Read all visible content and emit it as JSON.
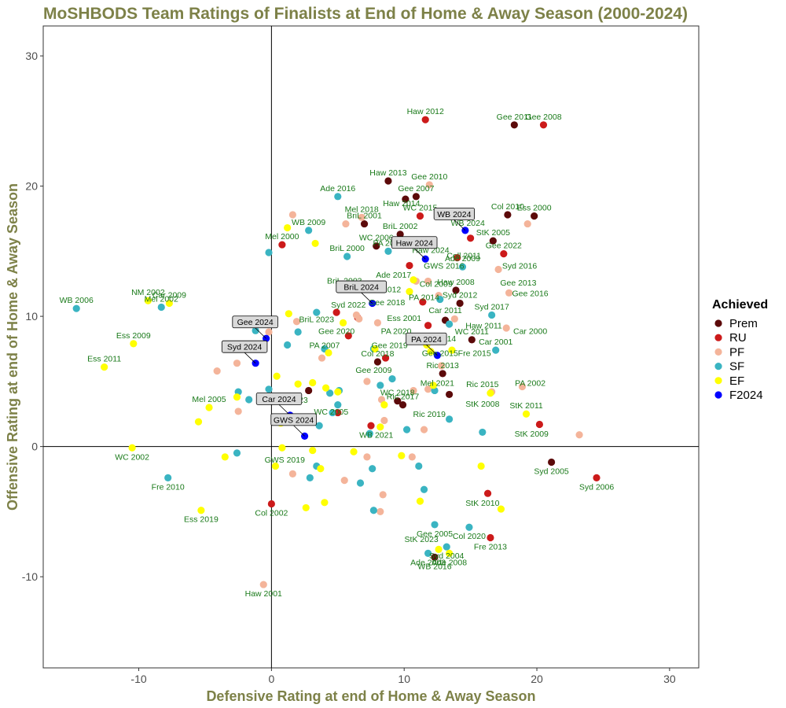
{
  "chart_data": {
    "type": "scatter",
    "title": "MoSHBODS Team Ratings of Finalists at End of Home & Away Season (2000-2024)",
    "xlabel": "Defensive Rating at end of Home & Away Season",
    "ylabel": "Offensive Rating at end of Home & Away Season",
    "xlim": [
      -17.2,
      32.2
    ],
    "ylim": [
      -17,
      32.3
    ],
    "xticks": [
      "-10",
      "0",
      "10",
      "20",
      "30"
    ],
    "yticks": [
      "-10",
      "0",
      "10",
      "20",
      "30"
    ],
    "grid": false,
    "reference_lines": {
      "x": 0,
      "y": 0
    },
    "colors": {
      "title": "#7d8148",
      "axis_title": "#7d8148",
      "point_label": "#1a7a1a",
      "Prem": "#5c0a0a",
      "RU": "#cc1a1a",
      "PF": "#f4b49a",
      "SF": "#3ab4c2",
      "EF": "#ffff00",
      "F2024": "#0000ff"
    },
    "legend": {
      "title": "Achieved",
      "position": "right",
      "entries": [
        "Prem",
        "RU",
        "PF",
        "SF",
        "EF",
        "F2024"
      ]
    },
    "series": [
      {
        "name": "Prem",
        "points": [
          {
            "x": 18.3,
            "y": 24.7,
            "label": "Gee 2011"
          },
          {
            "x": 8.8,
            "y": 20.4,
            "label": "Haw 2013"
          },
          {
            "x": 10.1,
            "y": 19.0
          },
          {
            "x": 10.9,
            "y": 19.2,
            "label": "Gee 2007"
          },
          {
            "x": 19.8,
            "y": 17.7,
            "label": "Ess 2000"
          },
          {
            "x": 17.8,
            "y": 17.8,
            "label": "Col 2010"
          },
          {
            "x": 9.7,
            "y": 16.3,
            "label": "BriL 2002"
          },
          {
            "x": 7.0,
            "y": 17.1,
            "label": "BriL 2001"
          },
          {
            "x": 16.7,
            "y": 15.8,
            "label": "StK 2005"
          },
          {
            "x": 9.5,
            "y": 15.5
          },
          {
            "x": 7.9,
            "y": 15.4,
            "label": "WC 2006"
          },
          {
            "x": 5.5,
            "y": 12.1,
            "label": "BriL 2003"
          },
          {
            "x": 13.9,
            "y": 12.0,
            "label": "Haw 2008"
          },
          {
            "x": 14.2,
            "y": 11.0,
            "label": "Syd 2012"
          },
          {
            "x": 13.1,
            "y": 9.7
          },
          {
            "x": 15.1,
            "y": 8.2,
            "label": "WC 2011"
          },
          {
            "x": 8.0,
            "y": 6.5,
            "label": "Col 2018"
          },
          {
            "x": 12.9,
            "y": 5.6,
            "label": "Ric 2013"
          },
          {
            "x": 13.4,
            "y": 4.0
          },
          {
            "x": 9.5,
            "y": 3.5,
            "label": "WC 2018"
          },
          {
            "x": 9.9,
            "y": 3.2,
            "label": "Ric 2017"
          },
          {
            "x": 2.8,
            "y": 4.3
          },
          {
            "x": 21.1,
            "y": -1.2,
            "label": "Syd 2005"
          },
          {
            "x": 12.3,
            "y": -8.5,
            "label": "WB 2016"
          }
        ]
      },
      {
        "name": "RU",
        "points": [
          {
            "x": 11.6,
            "y": 25.1,
            "label": "Haw 2012"
          },
          {
            "x": 20.5,
            "y": 24.7,
            "label": "Gee 2008"
          },
          {
            "x": 11.2,
            "y": 17.7,
            "label": "WC 2015"
          },
          {
            "x": 15.0,
            "y": 16.0
          },
          {
            "x": 0.8,
            "y": 15.5,
            "label": "Mel 2000"
          },
          {
            "x": 14.0,
            "y": 14.5
          },
          {
            "x": 17.5,
            "y": 14.8,
            "label": "Gee 2022"
          },
          {
            "x": 10.4,
            "y": 13.9
          },
          {
            "x": 11.4,
            "y": 11.1
          },
          {
            "x": 11.8,
            "y": 9.3
          },
          {
            "x": 6.5,
            "y": 9.9
          },
          {
            "x": 5.8,
            "y": 8.5
          },
          {
            "x": 4.9,
            "y": 10.3
          },
          {
            "x": 8.6,
            "y": 6.8
          },
          {
            "x": 5.0,
            "y": 2.6
          },
          {
            "x": 20.2,
            "y": 1.7
          },
          {
            "x": 7.5,
            "y": 1.6
          },
          {
            "x": 24.5,
            "y": -2.4,
            "label": "Syd 2006"
          },
          {
            "x": 16.3,
            "y": -3.6
          },
          {
            "x": 16.5,
            "y": -7.0,
            "label": "Fre 2013"
          },
          {
            "x": 0.0,
            "y": -4.4,
            "label": "Col 2002"
          }
        ]
      },
      {
        "name": "PF",
        "points": [
          {
            "x": 11.9,
            "y": 20.1,
            "label": "Gee 2010"
          },
          {
            "x": 1.6,
            "y": 17.8
          },
          {
            "x": 6.8,
            "y": 17.6,
            "label": "Mel 2018"
          },
          {
            "x": 5.6,
            "y": 17.1
          },
          {
            "x": 19.3,
            "y": 17.1
          },
          {
            "x": 17.1,
            "y": 13.6
          },
          {
            "x": 11.8,
            "y": 12.7
          },
          {
            "x": 10.9,
            "y": 12.7
          },
          {
            "x": 17.9,
            "y": 11.8
          },
          {
            "x": 12.6,
            "y": 11.6
          },
          {
            "x": 6.4,
            "y": 10.1
          },
          {
            "x": 6.6,
            "y": 9.8
          },
          {
            "x": 8.0,
            "y": 9.5
          },
          {
            "x": 1.9,
            "y": 9.6
          },
          {
            "x": 17.7,
            "y": 9.1
          },
          {
            "x": -0.2,
            "y": 8.8
          },
          {
            "x": 13.8,
            "y": 9.8
          },
          {
            "x": 12.8,
            "y": 6.2
          },
          {
            "x": -4.1,
            "y": 5.8
          },
          {
            "x": -2.6,
            "y": 6.4
          },
          {
            "x": 3.8,
            "y": 6.8
          },
          {
            "x": 7.2,
            "y": 5.0
          },
          {
            "x": 8.3,
            "y": 3.6
          },
          {
            "x": 10.7,
            "y": 4.3
          },
          {
            "x": 11.8,
            "y": 4.4
          },
          {
            "x": 18.9,
            "y": 4.6
          },
          {
            "x": -2.5,
            "y": 2.7
          },
          {
            "x": 23.2,
            "y": 0.9
          },
          {
            "x": 8.5,
            "y": 2.0
          },
          {
            "x": 11.5,
            "y": 1.3
          },
          {
            "x": 1.6,
            "y": -2.1
          },
          {
            "x": 5.5,
            "y": -2.6
          },
          {
            "x": 7.2,
            "y": -0.8
          },
          {
            "x": 10.6,
            "y": -0.8
          },
          {
            "x": 8.4,
            "y": -3.7
          },
          {
            "x": 8.2,
            "y": -5.0
          },
          {
            "x": -0.6,
            "y": -10.6,
            "label": "Haw 2001"
          },
          {
            "x": 16.6,
            "y": 4.2
          }
        ]
      },
      {
        "name": "SF",
        "points": [
          {
            "x": 5.0,
            "y": 19.2,
            "label": "Ade 2016"
          },
          {
            "x": 2.8,
            "y": 16.6,
            "label": "WB 2009"
          },
          {
            "x": -0.2,
            "y": 14.9
          },
          {
            "x": 5.7,
            "y": 14.6,
            "label": "BriL 2000"
          },
          {
            "x": 8.8,
            "y": 15.0,
            "label": "PA 2001"
          },
          {
            "x": 14.4,
            "y": 13.8,
            "label": "Ade 2009"
          },
          {
            "x": -14.7,
            "y": 10.6,
            "label": "WB 2006"
          },
          {
            "x": -8.3,
            "y": 10.7,
            "label": "Mel 2002"
          },
          {
            "x": 16.6,
            "y": 10.1,
            "label": "Syd 2017"
          },
          {
            "x": 13.4,
            "y": 9.4
          },
          {
            "x": 12.7,
            "y": 11.3
          },
          {
            "x": 11.1,
            "y": 8.3
          },
          {
            "x": 3.4,
            "y": 10.3
          },
          {
            "x": 7.7,
            "y": 7.5
          },
          {
            "x": -1.2,
            "y": 8.9
          },
          {
            "x": 2.0,
            "y": 8.8
          },
          {
            "x": 1.2,
            "y": 7.8
          },
          {
            "x": 4.0,
            "y": 7.5
          },
          {
            "x": 16.9,
            "y": 7.4,
            "label": "Car 2001"
          },
          {
            "x": 9.1,
            "y": 5.2
          },
          {
            "x": 8.2,
            "y": 4.7
          },
          {
            "x": 12.3,
            "y": 4.3
          },
          {
            "x": 4.4,
            "y": 4.1
          },
          {
            "x": 5.1,
            "y": 4.3
          },
          {
            "x": -2.5,
            "y": 4.2
          },
          {
            "x": -1.7,
            "y": 3.6
          },
          {
            "x": 5.0,
            "y": 3.2
          },
          {
            "x": -0.2,
            "y": 4.4
          },
          {
            "x": 4.6,
            "y": 2.6
          },
          {
            "x": 13.4,
            "y": 2.1
          },
          {
            "x": 10.2,
            "y": 1.3
          },
          {
            "x": 15.9,
            "y": 1.1
          },
          {
            "x": 7.4,
            "y": 1.0
          },
          {
            "x": 3.6,
            "y": 1.6
          },
          {
            "x": -2.6,
            "y": -0.5
          },
          {
            "x": -7.8,
            "y": -2.4,
            "label": "Fre 2010"
          },
          {
            "x": 2.9,
            "y": -2.4
          },
          {
            "x": 3.4,
            "y": -1.5
          },
          {
            "x": 6.7,
            "y": -2.8
          },
          {
            "x": 7.6,
            "y": -1.7
          },
          {
            "x": 11.1,
            "y": -1.5
          },
          {
            "x": 11.5,
            "y": -3.3
          },
          {
            "x": 7.7,
            "y": -4.9
          },
          {
            "x": 12.3,
            "y": -6.0,
            "label": "Gee 2005"
          },
          {
            "x": 14.9,
            "y": -6.2,
            "label": "Col 2020"
          },
          {
            "x": 11.8,
            "y": -8.2,
            "label": "Ade 2003"
          },
          {
            "x": 13.2,
            "y": -7.7,
            "label": "Syd 2004"
          }
        ]
      },
      {
        "name": "EF",
        "points": [
          {
            "x": -9.3,
            "y": 11.2,
            "label": "NM 2002"
          },
          {
            "x": -7.7,
            "y": 11.0,
            "label": "Car 2009"
          },
          {
            "x": 1.2,
            "y": 16.8
          },
          {
            "x": 3.3,
            "y": 15.6
          },
          {
            "x": -10.4,
            "y": 7.9,
            "label": "Ess 2009"
          },
          {
            "x": -12.6,
            "y": 6.1,
            "label": "Ess 2011"
          },
          {
            "x": 1.3,
            "y": 10.2
          },
          {
            "x": 5.4,
            "y": 9.5
          },
          {
            "x": 10.4,
            "y": 11.9
          },
          {
            "x": 10.7,
            "y": 12.8
          },
          {
            "x": 11.7,
            "y": 7.8
          },
          {
            "x": 12.0,
            "y": 7.3
          },
          {
            "x": 13.6,
            "y": 7.4
          },
          {
            "x": 7.8,
            "y": 7.5
          },
          {
            "x": 4.3,
            "y": 7.2
          },
          {
            "x": -3.3,
            "y": 7.6
          },
          {
            "x": 0.4,
            "y": 5.4
          },
          {
            "x": 3.1,
            "y": 4.9
          },
          {
            "x": 2.0,
            "y": 4.8
          },
          {
            "x": 4.1,
            "y": 4.5
          },
          {
            "x": 5.0,
            "y": 4.2
          },
          {
            "x": 8.5,
            "y": 3.2
          },
          {
            "x": -4.7,
            "y": 3.0,
            "label": "Mel 2005"
          },
          {
            "x": -5.5,
            "y": 1.9
          },
          {
            "x": -2.6,
            "y": 3.8
          },
          {
            "x": 0.7,
            "y": 1.8
          },
          {
            "x": 19.2,
            "y": 2.5,
            "label": "StK 2011"
          },
          {
            "x": 16.5,
            "y": 4.1
          },
          {
            "x": 12.2,
            "y": 4.7
          },
          {
            "x": 8.2,
            "y": 1.5
          },
          {
            "x": -10.5,
            "y": -0.1,
            "label": "WC 2002"
          },
          {
            "x": 0.8,
            "y": -0.1
          },
          {
            "x": -3.5,
            "y": -0.8
          },
          {
            "x": 3.1,
            "y": -0.3
          },
          {
            "x": 6.2,
            "y": -0.4
          },
          {
            "x": 9.8,
            "y": -0.7
          },
          {
            "x": 0.3,
            "y": -1.5
          },
          {
            "x": 3.7,
            "y": -1.7
          },
          {
            "x": 15.8,
            "y": -1.5
          },
          {
            "x": 2.6,
            "y": -4.7
          },
          {
            "x": 4.0,
            "y": -4.3
          },
          {
            "x": 11.2,
            "y": -4.2
          },
          {
            "x": 17.3,
            "y": -4.8
          },
          {
            "x": -5.3,
            "y": -4.9,
            "label": "Ess 2019"
          },
          {
            "x": 12.6,
            "y": -7.9
          },
          {
            "x": 13.4,
            "y": -8.2,
            "label": "Ade 2008"
          }
        ]
      },
      {
        "name": "F2024",
        "points": [
          {
            "x": 14.6,
            "y": 16.6,
            "label": "WB 2024",
            "boxed": true
          },
          {
            "x": 11.6,
            "y": 14.4,
            "label": "Haw 2024",
            "boxed": true
          },
          {
            "x": 7.6,
            "y": 11.0,
            "label": "BriL 2024",
            "boxed": true
          },
          {
            "x": 12.5,
            "y": 7.0,
            "label": "PA 2024",
            "boxed": true
          },
          {
            "x": -0.4,
            "y": 8.3,
            "label": "Gee 2024",
            "boxed": true
          },
          {
            "x": -1.2,
            "y": 6.4,
            "label": "Syd 2024",
            "boxed": true
          },
          {
            "x": 1.4,
            "y": 2.4,
            "label": "Car 2024",
            "boxed": true
          },
          {
            "x": 2.5,
            "y": 0.8,
            "label": "GWS 2024",
            "boxed": true
          }
        ]
      }
    ],
    "extra_labels": [
      {
        "x": 9.8,
        "y": 18.7,
        "text": "Haw 2014"
      },
      {
        "x": 14.8,
        "y": 17.2,
        "text": "WB 2024"
      },
      {
        "x": 10.4,
        "y": 15.9,
        "text": "Haw 2015"
      },
      {
        "x": 12.0,
        "y": 15.1,
        "text": "Haw 2024"
      },
      {
        "x": 14.5,
        "y": 14.7,
        "text": "Coll 2011"
      },
      {
        "x": 13.0,
        "y": 13.9,
        "text": "GWS 2016"
      },
      {
        "x": 18.7,
        "y": 13.9,
        "text": "Syd 2016"
      },
      {
        "x": 18.6,
        "y": 12.6,
        "text": "Gee 2013"
      },
      {
        "x": 9.2,
        "y": 13.2,
        "text": "Ade 2017"
      },
      {
        "x": 12.4,
        "y": 12.5,
        "text": "Col 2009"
      },
      {
        "x": 8.4,
        "y": 12.1,
        "text": "Gee 2012"
      },
      {
        "x": 19.5,
        "y": 11.8,
        "text": "Gee 2016"
      },
      {
        "x": 11.5,
        "y": 11.5,
        "text": "PA 2014"
      },
      {
        "x": 8.7,
        "y": 11.1,
        "text": "Gee 2018"
      },
      {
        "x": 5.8,
        "y": 10.9,
        "text": "Syd 2022"
      },
      {
        "x": 13.1,
        "y": 10.5,
        "text": "Car 2011"
      },
      {
        "x": 10.0,
        "y": 9.9,
        "text": "Ess 2001"
      },
      {
        "x": 3.4,
        "y": 9.8,
        "text": "BriL 2023"
      },
      {
        "x": 16.0,
        "y": 9.3,
        "text": "Haw 2011"
      },
      {
        "x": 19.5,
        "y": 8.9,
        "text": "Car 2000"
      },
      {
        "x": 9.4,
        "y": 8.9,
        "text": "PA 2020"
      },
      {
        "x": 4.9,
        "y": 8.9,
        "text": "Gee 2020"
      },
      {
        "x": 12.6,
        "y": 8.3,
        "text": "Syd 2014"
      },
      {
        "x": 8.9,
        "y": 7.8,
        "text": "Gee 2019"
      },
      {
        "x": 4.0,
        "y": 7.8,
        "text": "PA 2007"
      },
      {
        "x": 12.7,
        "y": 7.2,
        "text": "Gee 2015"
      },
      {
        "x": 15.3,
        "y": 7.2,
        "text": "Fre 2015"
      },
      {
        "x": 7.7,
        "y": 5.9,
        "text": "Gee 2009"
      },
      {
        "x": 12.5,
        "y": 4.9,
        "text": "Mel 2021"
      },
      {
        "x": 15.9,
        "y": 4.8,
        "text": "Ric 2015"
      },
      {
        "x": 19.5,
        "y": 4.9,
        "text": "PA 2002"
      },
      {
        "x": 15.9,
        "y": 3.3,
        "text": "StK 2008"
      },
      {
        "x": 11.9,
        "y": 2.5,
        "text": "Ric 2019"
      },
      {
        "x": 1.5,
        "y": 3.6,
        "text": "Col 2023"
      },
      {
        "x": 4.5,
        "y": 2.7,
        "text": "WC 2005"
      },
      {
        "x": 7.9,
        "y": 0.9,
        "text": "WB 2021"
      },
      {
        "x": 19.6,
        "y": 1.0,
        "text": "StK 2009"
      },
      {
        "x": 1.0,
        "y": -1.0,
        "text": "GWS 2019"
      },
      {
        "x": 15.9,
        "y": -4.3,
        "text": "StK 2010"
      },
      {
        "x": 11.3,
        "y": -7.1,
        "text": "StK 2023"
      }
    ]
  }
}
